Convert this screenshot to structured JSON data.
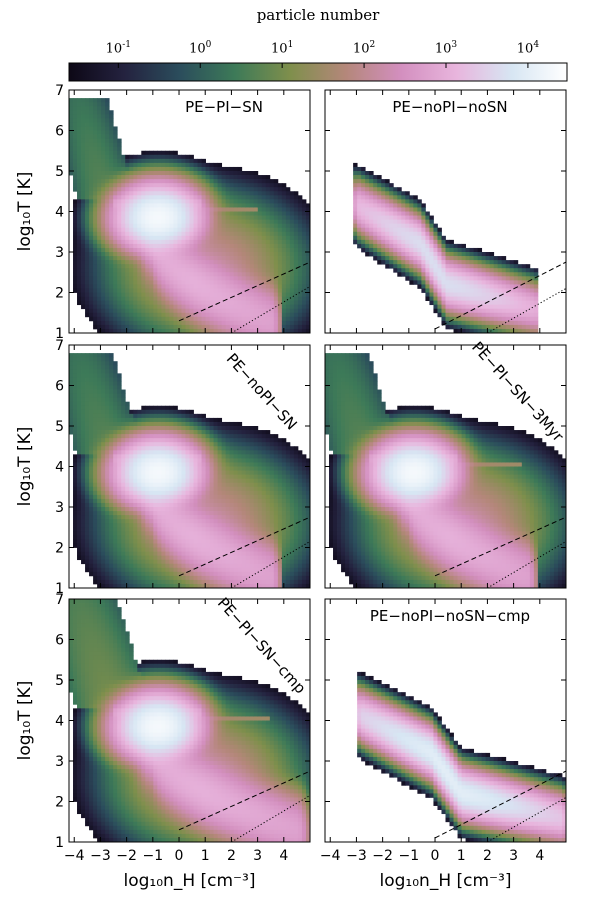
{
  "colorbar": {
    "label": "particle number",
    "ticks": [
      {
        "value": 0.1,
        "base": "10",
        "exp": "-1"
      },
      {
        "value": 1,
        "base": "10",
        "exp": "0"
      },
      {
        "value": 10,
        "base": "10",
        "exp": "1"
      },
      {
        "value": 100,
        "base": "10",
        "exp": "2"
      },
      {
        "value": 1000,
        "base": "10",
        "exp": "3"
      },
      {
        "value": 10000,
        "base": "10",
        "exp": "4"
      }
    ],
    "range": [
      0.025,
      30000
    ],
    "colors": [
      "#0d0816",
      "#24223f",
      "#2b4d5c",
      "#3d7a58",
      "#7f8f4c",
      "#b4877a",
      "#d38fbf",
      "#e8b5dd",
      "#d7e6f3",
      "#ffffff"
    ]
  },
  "axes": {
    "xlabel": "log₁₀n_H  [cm⁻³]",
    "ylabel": "log₁₀T [K]",
    "xlim": [
      -4.2,
      5.0
    ],
    "ylim": [
      1,
      7
    ],
    "xticks": [
      "-4",
      "-3",
      "-2",
      "-1",
      "0",
      "1",
      "2",
      "3",
      "4"
    ],
    "yticks": [
      "1",
      "2",
      "3",
      "4",
      "5",
      "6",
      "7"
    ]
  },
  "chart_data": [
    {
      "type": "heatmap",
      "title": "PE−PI−SN",
      "label_orientation": "horizontal",
      "xlim": [
        -4.2,
        5.0
      ],
      "ylim": [
        1,
        7
      ],
      "regions": [
        {
          "kind": "hot_plume",
          "x": [
            -3.8,
            -1.8
          ],
          "y": [
            4.3,
            6.8
          ],
          "peak": 5
        },
        {
          "kind": "warm_core",
          "x": [
            -1.2,
            -0.4
          ],
          "y": [
            3.6,
            4.1
          ],
          "peak": 20000
        },
        {
          "kind": "cooling_tail",
          "x": [
            -1,
            3.5
          ],
          "y": [
            1.3,
            3.5
          ],
          "peak": 1000
        },
        {
          "kind": "tail_line",
          "x": [
            -1.5,
            3.0
          ],
          "y": [
            4.05,
            4.05
          ],
          "peak": 30
        }
      ],
      "reference_lines": [
        {
          "style": "dashed",
          "x": [
            0,
            5
          ],
          "y": [
            1.3,
            2.75
          ]
        },
        {
          "style": "dotted",
          "x": [
            2,
            5
          ],
          "y": [
            1.0,
            2.15
          ]
        }
      ]
    },
    {
      "type": "heatmap",
      "title": "PE−noPI−noSN",
      "label_orientation": "horizontal",
      "xlim": [
        -4.2,
        5.0
      ],
      "ylim": [
        1,
        7
      ],
      "regions": [
        {
          "kind": "ridge",
          "x": [
            -2.9,
            3.8
          ],
          "y": [
            1.4,
            4.2
          ],
          "peak": 5000
        }
      ],
      "reference_lines": [
        {
          "style": "dashed",
          "x": [
            0,
            5
          ],
          "y": [
            1.1,
            2.75
          ]
        },
        {
          "style": "dotted",
          "x": [
            2,
            5
          ],
          "y": [
            1.0,
            2.1
          ]
        }
      ]
    },
    {
      "type": "heatmap",
      "title": "PE−noPI−SN",
      "label_orientation": "diagonal",
      "xlim": [
        -4.2,
        5.0
      ],
      "ylim": [
        1,
        7
      ],
      "regions": [
        {
          "kind": "hot_plume",
          "x": [
            -3.8,
            -1.5
          ],
          "y": [
            4.3,
            6.8
          ],
          "peak": 5
        },
        {
          "kind": "warm_core",
          "x": [
            -1.2,
            -0.4
          ],
          "y": [
            3.6,
            4.1
          ],
          "peak": 20000
        },
        {
          "kind": "cooling_tail",
          "x": [
            -1,
            3.5
          ],
          "y": [
            1.3,
            3.5
          ],
          "peak": 1000
        }
      ],
      "reference_lines": [
        {
          "style": "dashed",
          "x": [
            0,
            5
          ],
          "y": [
            1.3,
            2.75
          ]
        },
        {
          "style": "dotted",
          "x": [
            2,
            5
          ],
          "y": [
            1.0,
            2.15
          ]
        }
      ]
    },
    {
      "type": "heatmap",
      "title": "PE−PI−SN−3Myr",
      "label_orientation": "diagonal",
      "xlim": [
        -4.2,
        5.0
      ],
      "ylim": [
        1,
        7
      ],
      "regions": [
        {
          "kind": "hot_plume",
          "x": [
            -3.8,
            -1.5
          ],
          "y": [
            4.3,
            6.8
          ],
          "peak": 5
        },
        {
          "kind": "warm_core",
          "x": [
            -1.2,
            -0.4
          ],
          "y": [
            3.6,
            4.1
          ],
          "peak": 20000
        },
        {
          "kind": "cooling_tail",
          "x": [
            -1,
            3.5
          ],
          "y": [
            1.3,
            3.5
          ],
          "peak": 1000
        },
        {
          "kind": "tail_line",
          "x": [
            -1.5,
            3.3
          ],
          "y": [
            4.05,
            4.05
          ],
          "peak": 30
        }
      ],
      "reference_lines": [
        {
          "style": "dashed",
          "x": [
            0,
            5
          ],
          "y": [
            1.3,
            2.75
          ]
        },
        {
          "style": "dotted",
          "x": [
            2,
            5
          ],
          "y": [
            1.0,
            2.15
          ]
        }
      ]
    },
    {
      "type": "heatmap",
      "title": "PE−PI−SN−cmp",
      "label_orientation": "diagonal",
      "xlim": [
        -4.2,
        5.0
      ],
      "ylim": [
        1,
        7
      ],
      "regions": [
        {
          "kind": "hot_plume",
          "x": [
            -3.8,
            -1.2
          ],
          "y": [
            4.3,
            7.0
          ],
          "peak": 10
        },
        {
          "kind": "warm_core",
          "x": [
            -1.2,
            -0.4
          ],
          "y": [
            3.6,
            4.1
          ],
          "peak": 20000
        },
        {
          "kind": "cooling_tail",
          "x": [
            -1,
            4.5
          ],
          "y": [
            1.3,
            3.5
          ],
          "peak": 1000
        },
        {
          "kind": "tail_line",
          "x": [
            -1.5,
            3.5
          ],
          "y": [
            4.05,
            4.05
          ],
          "peak": 30
        }
      ],
      "reference_lines": [
        {
          "style": "dashed",
          "x": [
            0,
            5
          ],
          "y": [
            1.3,
            2.75
          ]
        },
        {
          "style": "dotted",
          "x": [
            2,
            5
          ],
          "y": [
            1.0,
            2.15
          ]
        }
      ]
    },
    {
      "type": "heatmap",
      "title": "PE−noPI−noSN−cmp",
      "label_orientation": "horizontal",
      "xlim": [
        -4.2,
        5.0
      ],
      "ylim": [
        1,
        7
      ],
      "regions": [
        {
          "kind": "ridge",
          "x": [
            -2.8,
            4.8
          ],
          "y": [
            1.4,
            4.3
          ],
          "peak": 10000
        }
      ],
      "reference_lines": [
        {
          "style": "dashed",
          "x": [
            0,
            5
          ],
          "y": [
            1.1,
            2.75
          ]
        },
        {
          "style": "dotted",
          "x": [
            2,
            5
          ],
          "y": [
            1.0,
            2.1
          ]
        }
      ]
    }
  ]
}
